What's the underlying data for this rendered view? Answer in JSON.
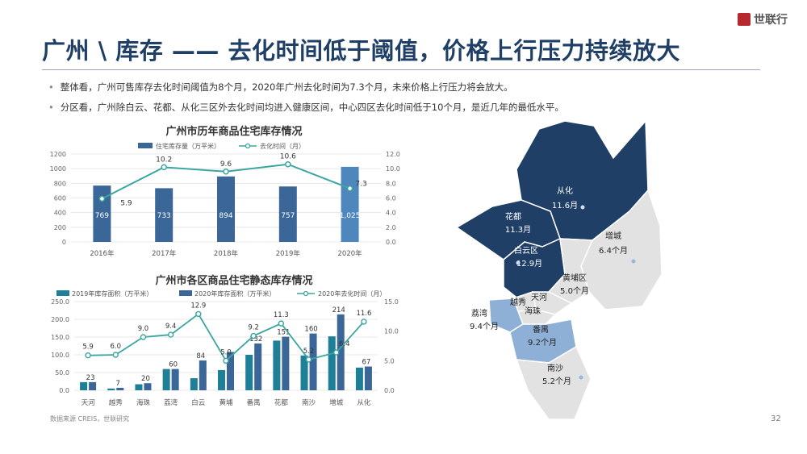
{
  "brand": {
    "name": "世联行",
    "color": "#b5292f"
  },
  "title": "广州 \\ 库存 —— 去化时间低于阈值，价格上行压力持续放大",
  "bullets": [
    "整体看，广州可售库存去化时间阈值为8个月，2020年广州去化时间为7.3个月，未来价格上行压力将会放大。",
    "分区看，广州除白云、花都、从化三区外去化时间均进入健康区间，中心四区去化时间低于10个月，是近几年的最低水平。"
  ],
  "source": "数据来源 CREIS，世联研究",
  "page_number": "32",
  "colors": {
    "bar_dark": "#3a6797",
    "bar_light": "#4e87bd",
    "bar_teal": "#1e7f97",
    "line": "#3aa6a0",
    "map_dark": "#1f3f66",
    "map_mid": "#8fb0d6",
    "map_light": "#e2e2e2"
  },
  "chart_data": [
    {
      "type": "bar",
      "title": "广州市历年商品住宅库存情况",
      "categories": [
        "2016年",
        "2017年",
        "2018年",
        "2019年",
        "2020年"
      ],
      "series": [
        {
          "name": "住宅库存量（万平米）",
          "type": "bar",
          "axis": "left",
          "values": [
            769,
            733,
            894,
            757,
            1025
          ]
        },
        {
          "name": "去化时间（月）",
          "type": "line",
          "axis": "right",
          "values": [
            5.9,
            10.2,
            9.6,
            10.6,
            7.3
          ]
        }
      ],
      "ylim": [
        0,
        1200
      ],
      "yticks": [
        0,
        200,
        400,
        600,
        800,
        1000,
        1200
      ],
      "y2lim": [
        0,
        12
      ],
      "y2ticks": [
        "0.0",
        "2.0",
        "4.0",
        "6.0",
        "8.0",
        "10.0",
        "12.0"
      ],
      "legend": "top"
    },
    {
      "type": "bar",
      "title": "广州市各区商品住宅静态库存情况",
      "categories": [
        "天河",
        "越秀",
        "海珠",
        "荔湾",
        "白云",
        "黄埔",
        "番禺",
        "花都",
        "南沙",
        "增城",
        "从化"
      ],
      "series": [
        {
          "name": "2019年库存面积（万平米）",
          "type": "bar",
          "axis": "left",
          "values": [
            23,
            5,
            17,
            60,
            34,
            57,
            100,
            140,
            98,
            152,
            64
          ]
        },
        {
          "name": "2020年库存面积（万平米）",
          "type": "bar",
          "axis": "left",
          "values": [
            23,
            7,
            20,
            60,
            84,
            108,
            132,
            151,
            160,
            214,
            67
          ]
        },
        {
          "name": "2020年去化时间（月）",
          "type": "line",
          "axis": "right",
          "values": [
            5.9,
            6.0,
            9.0,
            9.4,
            12.9,
            5.0,
            9.2,
            11.3,
            5.2,
            6.4,
            11.6
          ]
        }
      ],
      "labels_2020_bar": [
        "23",
        "7",
        "20",
        "60",
        "84",
        "",
        "132",
        "151",
        "160",
        "214",
        "67"
      ],
      "ylim": [
        0,
        250
      ],
      "yticks": [
        "0.0",
        "50.0",
        "100.0",
        "150.0",
        "200.0",
        "250.0"
      ],
      "y2lim": [
        0,
        15
      ],
      "y2ticks": [
        "0.0",
        "5.0",
        "10.0",
        "15.0"
      ],
      "legend": "top"
    }
  ],
  "map": {
    "districts": [
      {
        "name": "从化",
        "value": "11.6月",
        "tone": "dark"
      },
      {
        "name": "花都",
        "value": "11.3月",
        "tone": "dark"
      },
      {
        "name": "白云区",
        "value": "12.9月",
        "tone": "dark"
      },
      {
        "name": "增城",
        "value": "6.4个月",
        "tone": "light"
      },
      {
        "name": "黄埔区",
        "value": "5.0个月",
        "tone": "light"
      },
      {
        "name": "天河",
        "value": "",
        "tone": "light"
      },
      {
        "name": "越秀",
        "value": "",
        "tone": "light"
      },
      {
        "name": "海珠",
        "value": "",
        "tone": "light"
      },
      {
        "name": "荔湾",
        "value": "9.4个月",
        "tone": "mid"
      },
      {
        "name": "番禺",
        "value": "9.2个月",
        "tone": "mid"
      },
      {
        "name": "南沙",
        "value": "5.2个月",
        "tone": "light"
      }
    ]
  }
}
